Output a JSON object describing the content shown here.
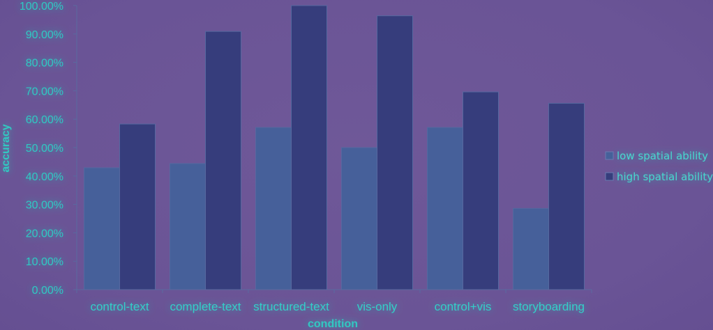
{
  "chart_data": {
    "type": "bar",
    "title": "",
    "xlabel": "condition",
    "ylabel": "accuracy",
    "ylim": [
      0,
      100
    ],
    "y_ticks": [
      "0.00%",
      "10.00%",
      "20.00%",
      "30.00%",
      "40.00%",
      "50.00%",
      "60.00%",
      "70.00%",
      "80.00%",
      "90.00%",
      "100.00%"
    ],
    "categories": [
      "control-text",
      "complete-text",
      "structured-text",
      "vis-only",
      "control+vis",
      "storyboarding"
    ],
    "series": [
      {
        "name": "low spatial ability",
        "color": "#46609a",
        "values": [
          42.9,
          44.4,
          57.1,
          50.0,
          57.1,
          28.6
        ]
      },
      {
        "name": "high spatial ability",
        "color": "#363d7c",
        "values": [
          58.3,
          90.9,
          100.0,
          96.4,
          69.6,
          65.6
        ]
      }
    ],
    "grid": false,
    "legend_position": "right"
  }
}
